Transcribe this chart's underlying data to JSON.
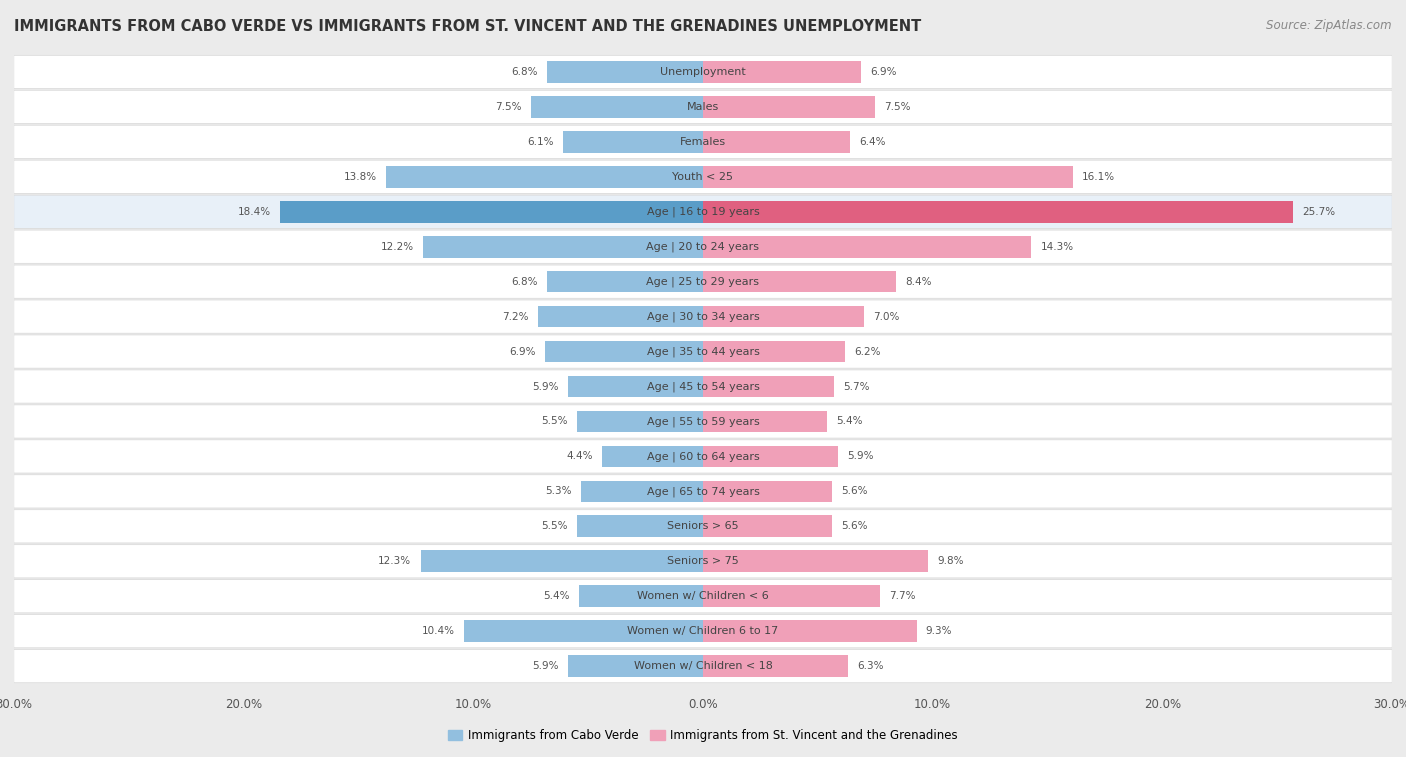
{
  "title": "IMMIGRANTS FROM CABO VERDE VS IMMIGRANTS FROM ST. VINCENT AND THE GRENADINES UNEMPLOYMENT",
  "source": "Source: ZipAtlas.com",
  "categories": [
    "Unemployment",
    "Males",
    "Females",
    "Youth < 25",
    "Age | 16 to 19 years",
    "Age | 20 to 24 years",
    "Age | 25 to 29 years",
    "Age | 30 to 34 years",
    "Age | 35 to 44 years",
    "Age | 45 to 54 years",
    "Age | 55 to 59 years",
    "Age | 60 to 64 years",
    "Age | 65 to 74 years",
    "Seniors > 65",
    "Seniors > 75",
    "Women w/ Children < 6",
    "Women w/ Children 6 to 17",
    "Women w/ Children < 18"
  ],
  "cabo_verde": [
    6.8,
    7.5,
    6.1,
    13.8,
    18.4,
    12.2,
    6.8,
    7.2,
    6.9,
    5.9,
    5.5,
    4.4,
    5.3,
    5.5,
    12.3,
    5.4,
    10.4,
    5.9
  ],
  "st_vincent": [
    6.9,
    7.5,
    6.4,
    16.1,
    25.7,
    14.3,
    8.4,
    7.0,
    6.2,
    5.7,
    5.4,
    5.9,
    5.6,
    5.6,
    9.8,
    7.7,
    9.3,
    6.3
  ],
  "cabo_verde_color": "#92bfdf",
  "st_vincent_color": "#f0a0b8",
  "cabo_verde_highlight_color": "#5a9dc8",
  "st_vincent_highlight_color": "#e06080",
  "row_bg_normal": "#ffffff",
  "row_bg_highlight": "#e8f0f8",
  "outer_bg": "#ebebeb",
  "row_border": "#d8d8d8",
  "xlim": 30.0,
  "tick_vals": [
    -30,
    -20,
    -10,
    0,
    10,
    20,
    30
  ],
  "legend_cabo_verde": "Immigrants from Cabo Verde",
  "legend_st_vincent": "Immigrants from St. Vincent and the Grenadines",
  "title_fontsize": 10.5,
  "source_fontsize": 8.5,
  "label_fontsize": 8.0,
  "value_fontsize": 7.5,
  "legend_fontsize": 8.5
}
